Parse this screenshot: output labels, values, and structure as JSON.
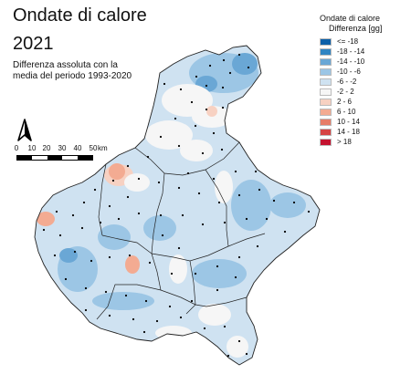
{
  "header": {
    "title": "Ondate di calore",
    "year": "2021",
    "subtitle": "Differenza assoluta con la\nmedia del periodo 1993-2020"
  },
  "legend": {
    "title": "Ondate di calore",
    "subtitle": "Differenza [gg]",
    "classes": [
      {
        "label": "<= -18",
        "color": "#0b5fa8"
      },
      {
        "label": "-18 - -14",
        "color": "#2f84c2"
      },
      {
        "label": "-14 - -10",
        "color": "#6aa7d5"
      },
      {
        "label": "-10 - -6",
        "color": "#9cc6e5"
      },
      {
        "label": "-6 - -2",
        "color": "#cfe2f1"
      },
      {
        "label": "-2 - 2",
        "color": "#f6f6f6"
      },
      {
        "label": "2 - 6",
        "color": "#f7d1c2"
      },
      {
        "label": "6 - 10",
        "color": "#f3ab92"
      },
      {
        "label": "10 - 14",
        "color": "#e67d68"
      },
      {
        "label": "14 - 18",
        "color": "#d54343"
      },
      {
        "label": "> 18",
        "color": "#c4122f"
      }
    ]
  },
  "scale": {
    "ticks": [
      "0",
      "10",
      "20",
      "30",
      "40",
      "50"
    ],
    "unit": "km"
  },
  "north_arrow": {
    "icon": "north-arrow-icon"
  }
}
